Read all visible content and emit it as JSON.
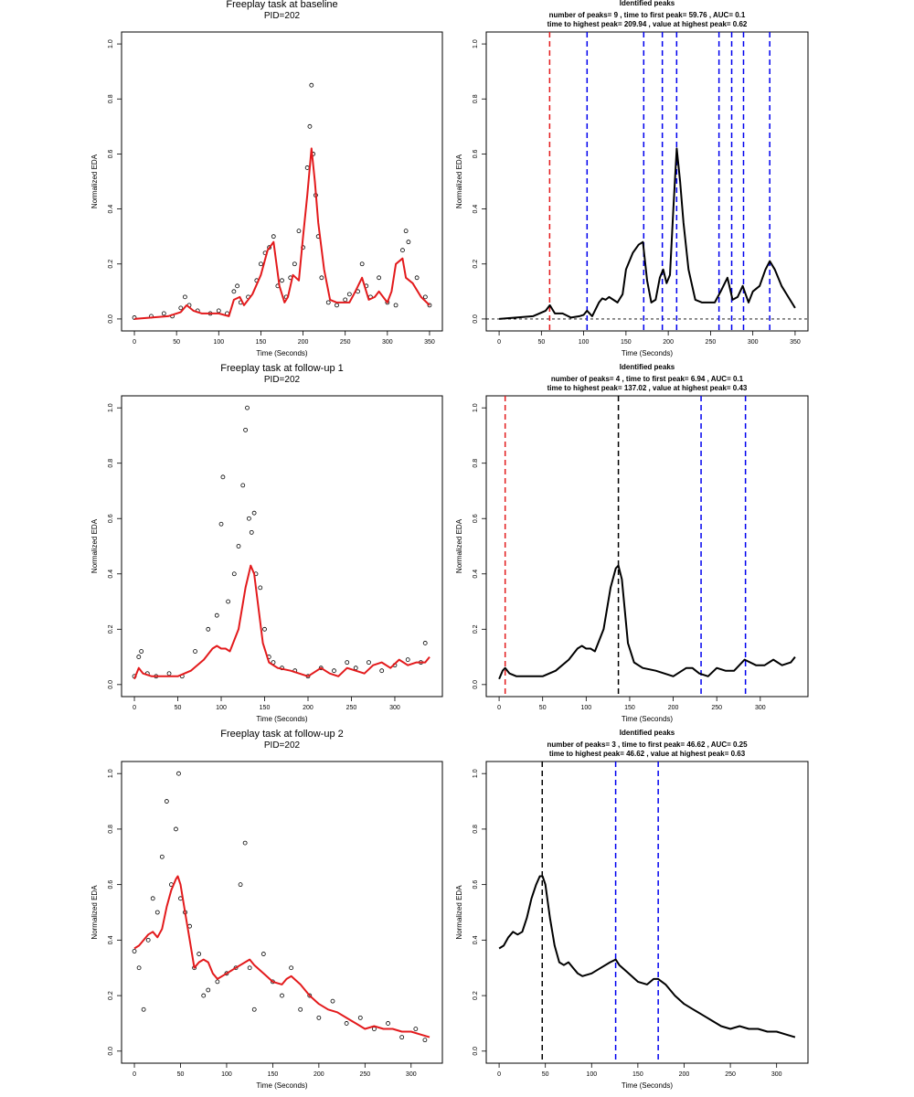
{
  "colors": {
    "fit": "#e31a1c",
    "first_peak": "#e31a1c",
    "peak": "#0000ee",
    "highest_peak": "#000000",
    "points": "#000000"
  },
  "chart_data": [
    {
      "type": "scatter",
      "panel": "left-1",
      "title": "Freeplay task at baseline",
      "subtitle": "PID=202",
      "xlabel": "Time (Seconds)",
      "ylabel": "Normalized EDA",
      "xlim": [
        0,
        350
      ],
      "ylim": [
        0,
        1
      ],
      "xticks": [
        "0",
        "50",
        "100",
        "150",
        "200",
        "250",
        "300",
        "350"
      ],
      "yticks": [
        "0.0",
        "0.2",
        "0.4",
        "0.6",
        "0.8",
        "1.0"
      ],
      "grid": false,
      "series": [
        {
          "kind": "points",
          "x": [
            0,
            20,
            35,
            45,
            55,
            60,
            65,
            75,
            90,
            100,
            110,
            118,
            122,
            126,
            135,
            145,
            150,
            155,
            160,
            165,
            170,
            175,
            180,
            185,
            190,
            195,
            200,
            205,
            208,
            210,
            212,
            215,
            218,
            222,
            230,
            240,
            250,
            255,
            265,
            270,
            275,
            280,
            290,
            300,
            310,
            318,
            322,
            325,
            335,
            345,
            350
          ],
          "y": [
            0.005,
            0.01,
            0.02,
            0.01,
            0.04,
            0.08,
            0.05,
            0.03,
            0.02,
            0.03,
            0.02,
            0.1,
            0.12,
            0.06,
            0.08,
            0.14,
            0.2,
            0.24,
            0.26,
            0.3,
            0.12,
            0.14,
            0.08,
            0.15,
            0.2,
            0.32,
            0.26,
            0.55,
            0.7,
            0.85,
            0.6,
            0.45,
            0.3,
            0.15,
            0.06,
            0.05,
            0.07,
            0.09,
            0.1,
            0.2,
            0.12,
            0.08,
            0.15,
            0.06,
            0.05,
            0.25,
            0.32,
            0.28,
            0.15,
            0.08,
            0.05
          ]
        },
        {
          "kind": "line",
          "x": [
            0,
            40,
            55,
            62,
            70,
            80,
            100,
            112,
            118,
            125,
            130,
            140,
            150,
            158,
            165,
            172,
            178,
            182,
            188,
            195,
            200,
            205,
            210,
            214,
            218,
            225,
            232,
            240,
            255,
            262,
            270,
            278,
            285,
            290,
            300,
            305,
            310,
            318,
            322,
            330,
            340,
            350
          ],
          "y": [
            0.0,
            0.01,
            0.025,
            0.05,
            0.03,
            0.02,
            0.02,
            0.01,
            0.07,
            0.08,
            0.05,
            0.09,
            0.16,
            0.25,
            0.28,
            0.12,
            0.06,
            0.08,
            0.16,
            0.14,
            0.3,
            0.45,
            0.62,
            0.5,
            0.35,
            0.18,
            0.07,
            0.06,
            0.06,
            0.1,
            0.15,
            0.07,
            0.08,
            0.1,
            0.06,
            0.1,
            0.2,
            0.22,
            0.15,
            0.13,
            0.08,
            0.05
          ]
        }
      ]
    },
    {
      "type": "line",
      "panel": "right-1",
      "title": "Identified peaks",
      "subtitle1": "number of peaks= 9 , time to first peak= 59.76 , AUC= 0.1",
      "subtitle2": "time to highest peak= 209.94 , value at highest peak= 0.62",
      "xlabel": "Time (Seconds)",
      "ylabel": "Normalized EDA",
      "xlim": [
        0,
        350
      ],
      "ylim": [
        0,
        1
      ],
      "xticks": [
        "0",
        "50",
        "100",
        "150",
        "200",
        "250",
        "300",
        "350"
      ],
      "yticks": [
        "0.0",
        "0.2",
        "0.4",
        "0.6",
        "0.8",
        "1.0"
      ],
      "baseline": 0,
      "x": [
        0,
        20,
        40,
        55,
        60,
        66,
        75,
        85,
        95,
        100,
        104,
        110,
        118,
        122,
        126,
        130,
        140,
        146,
        150,
        158,
        165,
        170,
        175,
        180,
        185,
        190,
        194,
        198,
        202,
        206,
        210,
        214,
        218,
        224,
        232,
        240,
        255,
        262,
        270,
        276,
        282,
        288,
        295,
        300,
        308,
        315,
        320,
        326,
        334,
        342,
        350
      ],
      "y": [
        0.0,
        0.005,
        0.01,
        0.03,
        0.05,
        0.02,
        0.02,
        0.005,
        0.01,
        0.015,
        0.03,
        0.01,
        0.06,
        0.075,
        0.07,
        0.08,
        0.06,
        0.09,
        0.18,
        0.24,
        0.27,
        0.28,
        0.14,
        0.06,
        0.07,
        0.15,
        0.18,
        0.13,
        0.16,
        0.4,
        0.62,
        0.5,
        0.35,
        0.18,
        0.07,
        0.06,
        0.06,
        0.1,
        0.15,
        0.07,
        0.08,
        0.12,
        0.06,
        0.1,
        0.12,
        0.18,
        0.21,
        0.18,
        0.12,
        0.08,
        0.04
      ],
      "vlines": [
        {
          "x": 59.76,
          "role": "first"
        },
        {
          "x": 104,
          "role": "peak"
        },
        {
          "x": 171,
          "role": "peak"
        },
        {
          "x": 193,
          "role": "peak"
        },
        {
          "x": 209.94,
          "role": "peak"
        },
        {
          "x": 260,
          "role": "peak"
        },
        {
          "x": 275,
          "role": "peak"
        },
        {
          "x": 289,
          "role": "peak"
        },
        {
          "x": 320,
          "role": "peak"
        }
      ]
    },
    {
      "type": "scatter",
      "panel": "left-2",
      "title": "Freeplay task at follow-up 1",
      "subtitle": "PID=202",
      "xlabel": "Time (Seconds)",
      "ylabel": "Normalized EDA",
      "xlim": [
        0,
        340
      ],
      "ylim": [
        0,
        1
      ],
      "xticks": [
        "0",
        "50",
        "100",
        "150",
        "200",
        "250",
        "300"
      ],
      "yticks": [
        "0.0",
        "0.2",
        "0.4",
        "0.6",
        "0.8",
        "1.0"
      ],
      "grid": false,
      "series": [
        {
          "kind": "points",
          "x": [
            0,
            5,
            8,
            15,
            25,
            40,
            55,
            70,
            85,
            95,
            100,
            102,
            108,
            115,
            120,
            125,
            128,
            130,
            132,
            135,
            138,
            140,
            145,
            150,
            155,
            160,
            170,
            185,
            200,
            215,
            230,
            245,
            255,
            270,
            285,
            300,
            315,
            330,
            335
          ],
          "y": [
            0.03,
            0.1,
            0.12,
            0.04,
            0.03,
            0.04,
            0.03,
            0.12,
            0.2,
            0.25,
            0.58,
            0.75,
            0.3,
            0.4,
            0.5,
            0.72,
            0.92,
            1.0,
            0.6,
            0.55,
            0.62,
            0.4,
            0.35,
            0.2,
            0.1,
            0.08,
            0.06,
            0.05,
            0.03,
            0.06,
            0.05,
            0.08,
            0.06,
            0.08,
            0.05,
            0.07,
            0.09,
            0.08,
            0.15
          ]
        },
        {
          "kind": "line",
          "x": [
            0,
            5,
            10,
            20,
            35,
            50,
            65,
            80,
            90,
            95,
            100,
            105,
            110,
            120,
            128,
            134,
            138,
            142,
            148,
            155,
            165,
            180,
            200,
            215,
            225,
            235,
            245,
            255,
            265,
            275,
            285,
            295,
            305,
            315,
            325,
            335,
            340
          ],
          "y": [
            0.02,
            0.06,
            0.04,
            0.03,
            0.03,
            0.03,
            0.05,
            0.09,
            0.13,
            0.14,
            0.13,
            0.13,
            0.12,
            0.2,
            0.35,
            0.43,
            0.4,
            0.3,
            0.15,
            0.08,
            0.06,
            0.05,
            0.03,
            0.06,
            0.04,
            0.03,
            0.06,
            0.05,
            0.04,
            0.07,
            0.08,
            0.06,
            0.09,
            0.07,
            0.08,
            0.08,
            0.1
          ]
        }
      ]
    },
    {
      "type": "line",
      "panel": "right-2",
      "title": "Identified peaks",
      "subtitle1": "number of peaks= 4 , time to first peak= 6.94 , AUC= 0.1",
      "subtitle2": "time to highest peak= 137.02 , value at highest peak= 0.43",
      "xlabel": "Time (Seconds)",
      "ylabel": "Normalized EDA",
      "xlim": [
        0,
        340
      ],
      "ylim": [
        0,
        1
      ],
      "xticks": [
        "0",
        "50",
        "100",
        "150",
        "200",
        "250",
        "300"
      ],
      "yticks": [
        "0.0",
        "0.2",
        "0.4",
        "0.6",
        "0.8",
        "1.0"
      ],
      "x": [
        0,
        4,
        7,
        12,
        20,
        35,
        50,
        65,
        80,
        90,
        95,
        100,
        105,
        110,
        120,
        128,
        134,
        137,
        141,
        148,
        155,
        165,
        180,
        200,
        215,
        222,
        230,
        240,
        250,
        260,
        270,
        282,
        295,
        305,
        315,
        325,
        335,
        340
      ],
      "y": [
        0.02,
        0.05,
        0.06,
        0.04,
        0.03,
        0.03,
        0.03,
        0.05,
        0.09,
        0.13,
        0.14,
        0.13,
        0.13,
        0.12,
        0.2,
        0.35,
        0.42,
        0.43,
        0.38,
        0.15,
        0.08,
        0.06,
        0.05,
        0.03,
        0.06,
        0.06,
        0.04,
        0.03,
        0.06,
        0.05,
        0.05,
        0.09,
        0.07,
        0.07,
        0.09,
        0.07,
        0.08,
        0.1
      ],
      "vlines": [
        {
          "x": 6.94,
          "role": "first"
        },
        {
          "x": 137.02,
          "role": "highest"
        },
        {
          "x": 232,
          "role": "peak"
        },
        {
          "x": 283,
          "role": "peak"
        }
      ]
    },
    {
      "type": "scatter",
      "panel": "left-3",
      "title": "Freeplay task at follow-up 2",
      "subtitle": "PID=202",
      "xlabel": "Time (Seconds)",
      "ylabel": "Normalized EDA",
      "xlim": [
        0,
        320
      ],
      "ylim": [
        0,
        1
      ],
      "xticks": [
        "0",
        "50",
        "100",
        "150",
        "200",
        "250",
        "300"
      ],
      "yticks": [
        "0.0",
        "0.2",
        "0.4",
        "0.6",
        "0.8",
        "1.0"
      ],
      "grid": false,
      "series": [
        {
          "kind": "points",
          "x": [
            0,
            5,
            10,
            15,
            20,
            25,
            30,
            35,
            40,
            45,
            48,
            50,
            55,
            60,
            65,
            70,
            75,
            80,
            90,
            100,
            110,
            115,
            120,
            125,
            130,
            140,
            150,
            160,
            170,
            180,
            190,
            200,
            215,
            230,
            245,
            260,
            275,
            290,
            305,
            315
          ],
          "y": [
            0.36,
            0.3,
            0.15,
            0.4,
            0.55,
            0.5,
            0.7,
            0.9,
            0.6,
            0.8,
            1.0,
            0.55,
            0.5,
            0.45,
            0.3,
            0.35,
            0.2,
            0.22,
            0.25,
            0.28,
            0.3,
            0.6,
            0.75,
            0.3,
            0.15,
            0.35,
            0.25,
            0.2,
            0.3,
            0.15,
            0.2,
            0.12,
            0.18,
            0.1,
            0.12,
            0.08,
            0.1,
            0.05,
            0.08,
            0.04
          ]
        },
        {
          "kind": "line",
          "x": [
            0,
            5,
            10,
            15,
            20,
            25,
            30,
            35,
            40,
            45,
            47,
            50,
            55,
            60,
            65,
            70,
            75,
            80,
            85,
            90,
            100,
            110,
            120,
            125,
            130,
            140,
            150,
            160,
            165,
            170,
            180,
            190,
            200,
            210,
            220,
            230,
            240,
            250,
            260,
            270,
            280,
            290,
            300,
            310,
            320
          ],
          "y": [
            0.37,
            0.38,
            0.4,
            0.42,
            0.43,
            0.41,
            0.44,
            0.52,
            0.58,
            0.62,
            0.63,
            0.6,
            0.5,
            0.4,
            0.3,
            0.32,
            0.33,
            0.32,
            0.28,
            0.26,
            0.28,
            0.3,
            0.32,
            0.33,
            0.31,
            0.28,
            0.25,
            0.24,
            0.26,
            0.27,
            0.24,
            0.2,
            0.17,
            0.15,
            0.14,
            0.12,
            0.1,
            0.08,
            0.09,
            0.08,
            0.08,
            0.07,
            0.07,
            0.06,
            0.05
          ]
        }
      ]
    },
    {
      "type": "line",
      "panel": "right-3",
      "title": "Identified peaks",
      "subtitle1": "number of peaks= 3 , time to first peak= 46.62 , AUC= 0.25",
      "subtitle2": "time to highest peak= 46.62 , value at highest peak= 0.63",
      "xlabel": "Time (Seconds)",
      "ylabel": "Normalized EDA",
      "xlim": [
        0,
        320
      ],
      "ylim": [
        0,
        1
      ],
      "xticks": [
        "0",
        "50",
        "100",
        "150",
        "200",
        "250",
        "300"
      ],
      "yticks": [
        "0.0",
        "0.2",
        "0.4",
        "0.6",
        "0.8",
        "1.0"
      ],
      "x": [
        0,
        5,
        10,
        15,
        20,
        25,
        30,
        35,
        40,
        44,
        47,
        50,
        55,
        60,
        65,
        70,
        75,
        80,
        85,
        90,
        100,
        110,
        120,
        126,
        130,
        140,
        150,
        160,
        167,
        172,
        180,
        190,
        200,
        210,
        220,
        230,
        240,
        250,
        260,
        270,
        280,
        290,
        300,
        310,
        320
      ],
      "y": [
        0.37,
        0.38,
        0.41,
        0.43,
        0.42,
        0.43,
        0.48,
        0.55,
        0.6,
        0.63,
        0.63,
        0.6,
        0.48,
        0.38,
        0.32,
        0.31,
        0.32,
        0.3,
        0.28,
        0.27,
        0.28,
        0.3,
        0.32,
        0.33,
        0.31,
        0.28,
        0.25,
        0.24,
        0.26,
        0.26,
        0.24,
        0.2,
        0.17,
        0.15,
        0.13,
        0.11,
        0.09,
        0.08,
        0.09,
        0.08,
        0.08,
        0.07,
        0.07,
        0.06,
        0.05
      ],
      "vlines": [
        {
          "x": 46.62,
          "role": "highest"
        },
        {
          "x": 126,
          "role": "peak"
        },
        {
          "x": 172,
          "role": "peak"
        }
      ]
    }
  ]
}
